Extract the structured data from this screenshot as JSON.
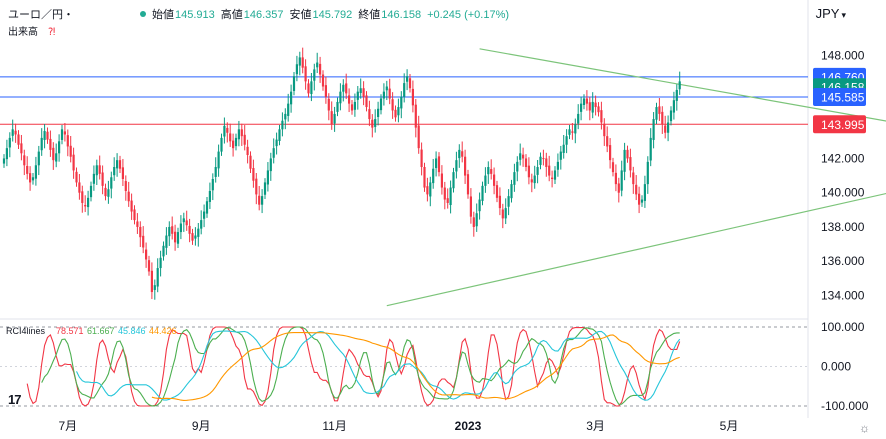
{
  "header": {
    "symbol": "ユーロ／円・",
    "open_label": "始値",
    "open": "145.913",
    "high_label": "高値",
    "high": "146.357",
    "low_label": "安値",
    "low": "145.792",
    "close_label": "終値",
    "close": "146.158",
    "change": "+0.245 (+0.17%)",
    "volume_label": "出来高",
    "currency": "JPY"
  },
  "chart_data": [
    {
      "type": "candlestick",
      "title": "ユーロ／円",
      "y_ticks": [
        "148.000",
        "146.000",
        "144.000",
        "142.000",
        "140.000",
        "138.000",
        "136.000",
        "134.000"
      ],
      "ylim": [
        132.8,
        149.5
      ],
      "x_ticks": [
        "7月",
        "9月",
        "11月",
        "2023",
        "3月",
        "5月"
      ],
      "price_labels": [
        {
          "value": 146.76,
          "text": "146.760",
          "color": "#2962ff"
        },
        {
          "value": 146.158,
          "text": "146.158",
          "color": "#089981"
        },
        {
          "value": 145.585,
          "text": "145.585",
          "color": "#2962ff"
        },
        {
          "value": 143.995,
          "text": "143.995",
          "color": "#f23645"
        }
      ],
      "horizontal_lines": [
        {
          "value": 146.76,
          "color": "#2962ff"
        },
        {
          "value": 145.585,
          "color": "#2962ff"
        },
        {
          "value": 143.995,
          "color": "#f23645"
        }
      ],
      "trendlines": [
        {
          "from": {
            "bar": 132,
            "value": 133.4
          },
          "to": {
            "bar": 337,
            "value": 141.2
          },
          "color": "#7cc47a"
        },
        {
          "from": {
            "bar": 164,
            "value": 148.4
          },
          "to": {
            "bar": 337,
            "value": 143.2
          },
          "color": "#7cc47a"
        }
      ],
      "closes": [
        142.0,
        142.6,
        143.2,
        143.7,
        143.4,
        142.8,
        142.3,
        141.6,
        141.1,
        140.6,
        140.9,
        141.6,
        142.4,
        143.2,
        143.6,
        143.1,
        142.5,
        141.9,
        142.3,
        143.0,
        143.7,
        143.4,
        142.7,
        142.1,
        141.3,
        140.6,
        140.0,
        139.4,
        139.2,
        139.7,
        140.4,
        141.1,
        141.6,
        141.1,
        140.4,
        139.8,
        140.2,
        140.9,
        141.5,
        141.9,
        141.4,
        140.8,
        140.1,
        139.5,
        138.9,
        138.4,
        138.0,
        137.4,
        136.8,
        136.1,
        135.4,
        134.2,
        134.6,
        135.6,
        136.2,
        136.9,
        137.5,
        138.0,
        137.6,
        137.1,
        137.7,
        138.2,
        138.5,
        138.1,
        137.6,
        137.2,
        137.5,
        137.9,
        138.4,
        138.9,
        139.5,
        140.1,
        140.8,
        141.5,
        142.4,
        143.2,
        143.9,
        143.5,
        143.0,
        142.6,
        143.2,
        143.7,
        143.3,
        142.8,
        142.2,
        141.4,
        140.7,
        139.9,
        139.3,
        139.8,
        140.6,
        141.3,
        142.0,
        142.6,
        143.1,
        143.7,
        144.2,
        144.6,
        145.2,
        145.9,
        146.8,
        147.5,
        147.9,
        147.3,
        146.5,
        145.8,
        146.5,
        147.2,
        147.6,
        146.9,
        146.2,
        145.6,
        144.8,
        144.0,
        144.6,
        145.3,
        145.9,
        146.3,
        145.8,
        145.2,
        144.8,
        145.3,
        145.9,
        146.1,
        145.6,
        145.0,
        144.3,
        143.8,
        144.3,
        144.9,
        145.5,
        145.9,
        146.2,
        145.5,
        144.8,
        144.4,
        145.0,
        145.6,
        146.4,
        146.8,
        146.1,
        145.1,
        143.8,
        142.6,
        141.5,
        140.3,
        139.9,
        140.6,
        141.4,
        142.0,
        141.2,
        140.3,
        139.6,
        139.4,
        140.3,
        141.2,
        141.9,
        142.5,
        142.1,
        141.0,
        139.9,
        138.6,
        138.0,
        138.8,
        139.6,
        140.4,
        141.0,
        141.5,
        141.1,
        140.4,
        139.7,
        139.1,
        138.5,
        139.1,
        139.8,
        140.5,
        141.2,
        141.8,
        142.3,
        142.0,
        141.5,
        140.9,
        140.6,
        141.0,
        141.5,
        142.1,
        142.0,
        141.5,
        141.0,
        140.8,
        141.3,
        141.8,
        142.4,
        142.8,
        143.3,
        143.7,
        143.5,
        144.0,
        144.6,
        145.2,
        145.5,
        145.2,
        144.8,
        145.3,
        145.0,
        144.7,
        144.1,
        143.3,
        142.7,
        141.9,
        141.2,
        140.5,
        140.0,
        141.3,
        142.5,
        142.0,
        141.3,
        140.5,
        139.9,
        139.3,
        139.6,
        140.5,
        141.8,
        143.2,
        144.3,
        145.0,
        144.6,
        144.0,
        143.5,
        144.1,
        144.8,
        145.4,
        146.0,
        146.5
      ],
      "rci": {
        "label": "RCI4lines",
        "values": [
          {
            "text": "78.571",
            "color": "#f23645"
          },
          {
            "text": "61.667",
            "color": "#4caf50"
          },
          {
            "text": "45.846",
            "color": "#26c6da"
          },
          {
            "text": "44.426",
            "color": "#ff9800"
          }
        ],
        "y_ticks": [
          "100.000",
          "0.000",
          "-100.000"
        ],
        "ylim": [
          -110,
          110
        ]
      }
    }
  ]
}
